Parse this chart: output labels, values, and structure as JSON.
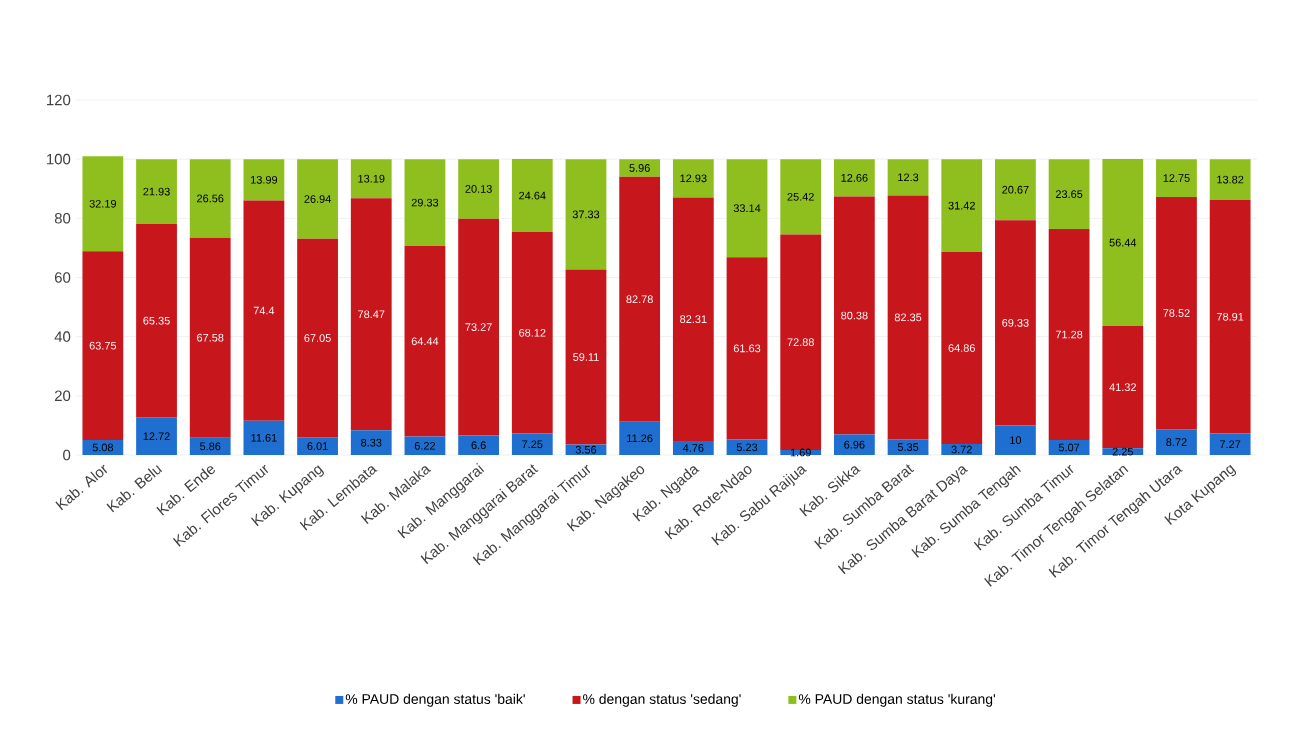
{
  "chart_data": {
    "type": "bar",
    "stacked": true,
    "data_labels": true,
    "grid": "y",
    "legend": "bottom",
    "categories": [
      "Kab. Alor",
      "Kab. Belu",
      "Kab. Ende",
      "Kab. Flores Timur",
      "Kab. Kupang",
      "Kab. Lembata",
      "Kab. Malaka",
      "Kab. Manggarai",
      "Kab. Manggarai Barat",
      "Kab. Manggarai Timur",
      "Kab. Nagakeo",
      "Kab. Ngada",
      "Kab. Rote-Ndao",
      "Kab. Sabu Raijua",
      "Kab. Sikka",
      "Kab. Sumba Barat",
      "Kab. Sumba Barat Daya",
      "Kab. Sumba Tengah",
      "Kab. Sumba Timur",
      "Kab. Timor Tengah Selatan",
      "Kab. Timor Tengah Utara",
      "Kota Kupang"
    ],
    "ylim": [
      0,
      120
    ],
    "yticks": [
      0,
      20,
      40,
      60,
      80,
      100,
      120
    ],
    "series": [
      {
        "name": "% PAUD dengan status 'baik'",
        "color": "#1f6fd0",
        "values": [
          5.08,
          12.72,
          5.86,
          11.61,
          6.01,
          8.33,
          6.22,
          6.6,
          7.25,
          3.56,
          11.26,
          4.76,
          5.23,
          1.69,
          6.96,
          5.35,
          3.72,
          10,
          5.07,
          2.25,
          8.72,
          7.27
        ]
      },
      {
        "name": "% dengan status 'sedang'",
        "color": "#c8161d",
        "values": [
          63.75,
          65.35,
          67.58,
          74.4,
          67.05,
          78.47,
          64.44,
          73.27,
          68.12,
          59.11,
          82.78,
          82.31,
          61.63,
          72.88,
          80.38,
          82.35,
          64.86,
          69.33,
          71.28,
          41.32,
          78.52,
          78.91
        ]
      },
      {
        "name": "% PAUD dengan status 'kurang'",
        "color": "#8fbf1f",
        "values": [
          32.19,
          21.93,
          26.56,
          13.99,
          26.94,
          13.19,
          29.33,
          20.13,
          24.64,
          37.33,
          5.96,
          12.93,
          33.14,
          25.42,
          12.66,
          12.3,
          31.42,
          20.67,
          23.65,
          56.44,
          12.75,
          13.82
        ]
      }
    ]
  }
}
